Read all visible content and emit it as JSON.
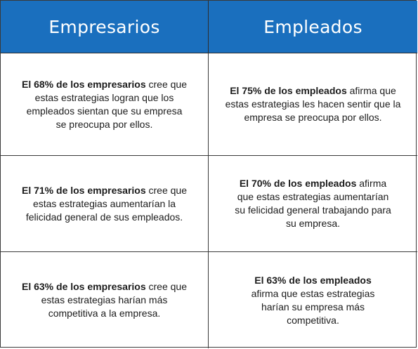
{
  "headers": {
    "left": "Empresarios",
    "right": "Empleados"
  },
  "rows": [
    {
      "left": {
        "bold": "El 68% de los empresarios",
        "rest": " cree que estas estrategias logran que los empleados sientan que su empresa se preocupa por ellos."
      },
      "right": {
        "bold": "El 75% de los empleados",
        "rest": " afirma que estas estrategias les hacen sentir que la empresa se preocupa por ellos."
      }
    },
    {
      "left": {
        "bold": "El 71% de los empresarios",
        "rest": " cree que estas estrategias aumentarían la felicidad general de sus empleados."
      },
      "right": {
        "bold": "El 70% de los empleados",
        "rest": " afirma que estas estrategias aumentarían su felicidad general trabajando para su empresa."
      }
    },
    {
      "left": {
        "bold": "El 63% de los empresarios",
        "rest": " cree que estas estrategias harían más competitiva a la empresa."
      },
      "right": {
        "bold": "El 63% de los empleados",
        "rest": " afirma que estas estrategias harían su empresa más competitiva."
      }
    }
  ],
  "colors": {
    "header_bg": "#1a6fbe",
    "header_text": "#ffffff",
    "border": "#3a3a3a"
  }
}
